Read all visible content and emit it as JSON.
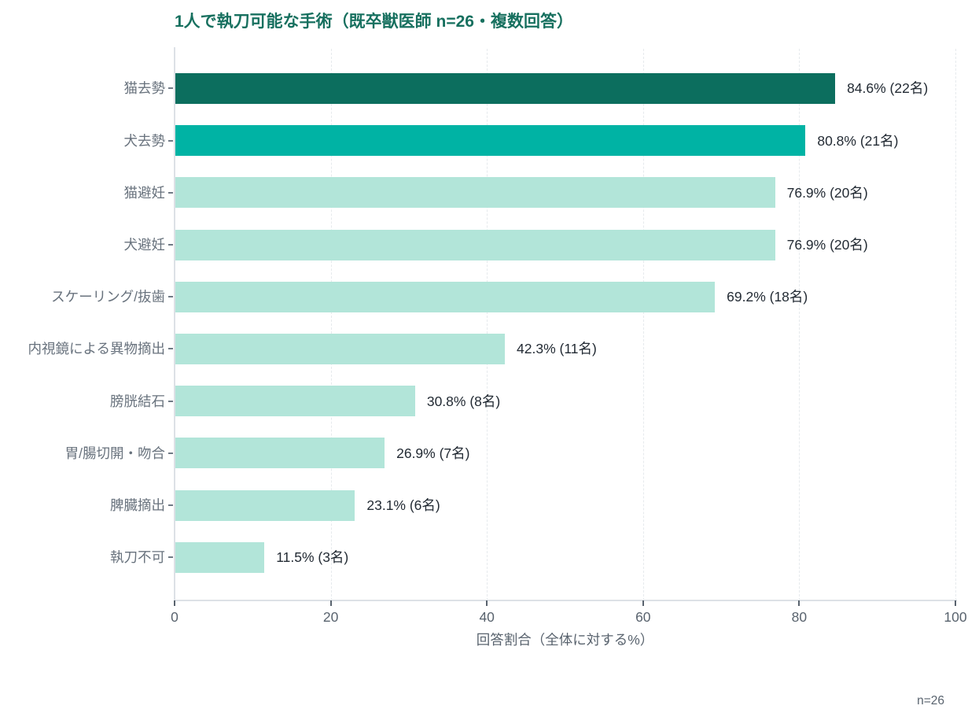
{
  "chart_data": {
    "type": "bar",
    "orientation": "horizontal",
    "title": "1人で執刀可能な手術（既卒獣医師 n=26・複数回答）",
    "categories": [
      "猫去勢",
      "犬去勢",
      "猫避妊",
      "犬避妊",
      "スケーリング/抜歯",
      "内視鏡による異物摘出",
      "膀胱結石",
      "胃/腸切開・吻合",
      "脾臓摘出",
      "執刀不可"
    ],
    "values": [
      84.6,
      80.8,
      76.9,
      76.9,
      69.2,
      42.3,
      30.8,
      26.9,
      23.1,
      11.5
    ],
    "counts": [
      22,
      21,
      20,
      20,
      18,
      11,
      8,
      7,
      6,
      3
    ],
    "bar_labels": [
      "84.6% (22名)",
      "80.8% (21名)",
      "76.9% (20名)",
      "76.9% (20名)",
      "69.2% (18名)",
      "42.3% (11名)",
      "30.8% (8名)",
      "26.9% (7名)",
      "23.1% (6名)",
      "11.5% (3名)"
    ],
    "bar_colors": [
      "#0c6e5e",
      "#00b3a4",
      "#b2e5d9",
      "#b2e5d9",
      "#b2e5d9",
      "#b2e5d9",
      "#b2e5d9",
      "#b2e5d9",
      "#b2e5d9",
      "#b2e5d9"
    ],
    "xlabel": "回答割合（全体に対する%）",
    "xlim": [
      0,
      100
    ],
    "xticks": [
      0,
      20,
      40,
      60,
      80,
      100
    ],
    "grid": "vertical-dashed",
    "legend": "none",
    "note": "n=26"
  },
  "colors": {
    "title_text": "#17705f",
    "bar_dark_teal": "#0c6e5e",
    "bar_teal": "#00b3a4",
    "bar_light_mint": "#b2e5d9",
    "axis_text": "#59636e",
    "category_text": "#68727d",
    "value_text": "#232b34",
    "spine": "#dde1e6",
    "gridline": "#e6eaed",
    "background": "#ffffff"
  }
}
